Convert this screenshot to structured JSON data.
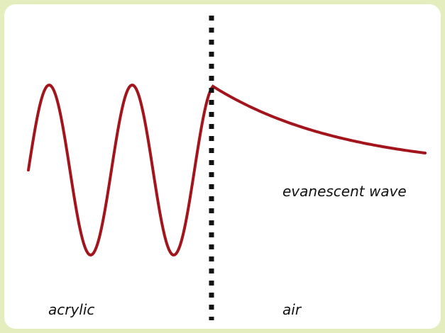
{
  "labels": {
    "wave": "evanescent wave",
    "left_medium": "acrylic",
    "right_medium": "air"
  }
}
